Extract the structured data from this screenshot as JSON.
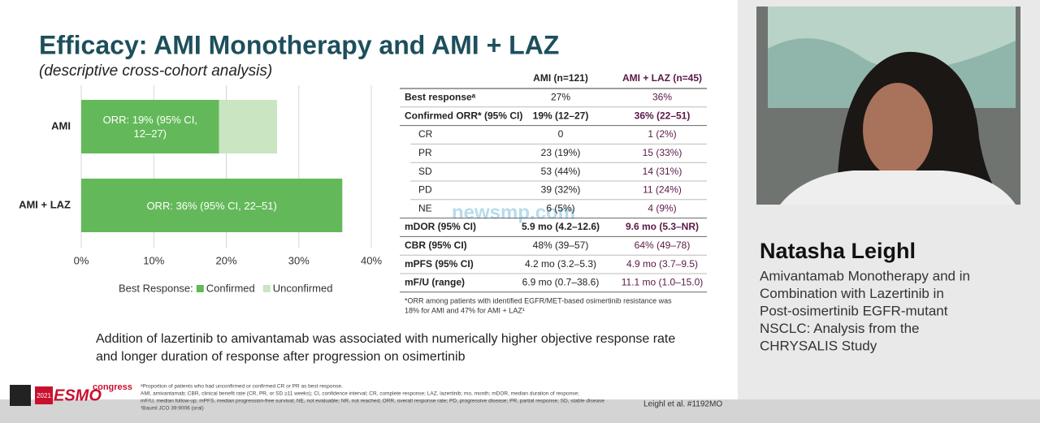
{
  "slide": {
    "title": "Efficacy: AMI Monotherapy and AMI + LAZ",
    "subtitle": "(descriptive cross-cohort analysis)",
    "table": {
      "headers": [
        "AMI (n=121)",
        "AMI + LAZ (n=45)"
      ],
      "rows": [
        [
          "Best responseᵃ",
          "27%",
          "36%"
        ],
        [
          "Confirmed ORR* (95% CI)",
          "19% (12–27)",
          "36% (22–51)"
        ],
        [
          "CR",
          "0",
          "1 (2%)"
        ],
        [
          "PR",
          "23 (19%)",
          "15 (33%)"
        ],
        [
          "SD",
          "53 (44%)",
          "14 (31%)"
        ],
        [
          "PD",
          "39 (32%)",
          "11 (24%)"
        ],
        [
          "NE",
          "6 (5%)",
          "4 (9%)"
        ],
        [
          "mDOR (95% CI)",
          "5.9 mo (4.2–12.6)",
          "9.6 mo (5.3–NR)"
        ],
        [
          "CBR (95% CI)",
          "48% (39–57)",
          "64% (49–78)"
        ],
        [
          "mPFS (95% CI)",
          "4.2 mo (3.2–5.3)",
          "4.9 mo (3.7–9.5)"
        ],
        [
          "mF/U (range)",
          "6.9 mo (0.7–38.6)",
          "11.1 mo (1.0–15.0)"
        ]
      ]
    },
    "table_note": [
      "*ORR among patients with identified EGFR/MET-based osimertinib resistance was",
      "18% for AMI and 47% for AMI + LAZ¹"
    ],
    "conclusion": [
      "Addition of lazertinib to amivantamab was associated with numerically higher objective response rate",
      "and longer duration of response after progression on osimertinib"
    ],
    "footnotes": [
      "ᵃProportion of patients who had unconfirmed or confirmed CR or PR as best response.",
      "AMI, amivantamab; CBR, clinical benefit rate (CR, PR, or SD ≥11 weeks); CI, confidence interval; CR, complete response; LAZ, lazertinib; mo, month; mDOR, median duration of response;",
      "mF/U, median follow-up; mPFS, median progression-free survival; NE, not evaluable; NR, not reached; ORR, overall response rate; PD, progressive disease; PR, partial response; SD, stable disease",
      "¹Bauml JCO 39:9006 (oral)"
    ],
    "citation": "Leighl et al. #1192MO",
    "logo": {
      "year": "2021",
      "brand": "ESMO",
      "event": "congress"
    },
    "watermark": "newsmp.com"
  },
  "speaker": {
    "name": "Natasha Leighl",
    "talk_title": [
      "Amivantamab Monotherapy and in",
      "Combination with Lazertinib in",
      "Post-osimertinib EGFR-mutant",
      "NSCLC: Analysis from the",
      "CHRYSALIS Study"
    ]
  },
  "chart_data": {
    "type": "bar",
    "orientation": "horizontal",
    "stacked": true,
    "categories": [
      "AMI",
      "AMI + LAZ"
    ],
    "series": [
      {
        "name": "Confirmed",
        "color": "#63b95a",
        "values": [
          19,
          36
        ],
        "value_labels": [
          "ORR: 19% (95% CI, 12–27)",
          "ORR: 36% (95% CI, 22–51)"
        ]
      },
      {
        "name": "Unconfirmed",
        "color": "#c9e5c2",
        "values": [
          8,
          0
        ]
      }
    ],
    "legend_title": "Best Response:",
    "xlim": [
      0,
      40
    ],
    "xticks": [
      {
        "value": 0,
        "label": "0%"
      },
      {
        "value": 10,
        "label": "10%"
      },
      {
        "value": 20,
        "label": "20%"
      },
      {
        "value": 30,
        "label": "30%"
      },
      {
        "value": 40,
        "label": "40%"
      }
    ],
    "grid": true
  }
}
